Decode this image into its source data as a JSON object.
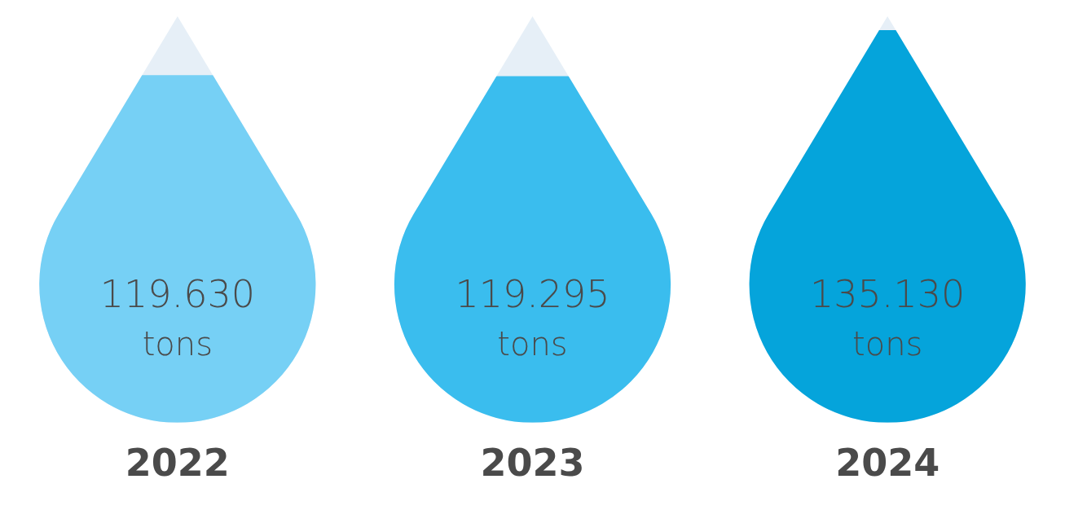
{
  "chart_data": {
    "type": "bar",
    "categories": [
      "2022",
      "2023",
      "2024"
    ],
    "values": [
      119630,
      119295,
      135130
    ],
    "value_labels": [
      "119.630 tons",
      "119.295 tons",
      "135.130 tons"
    ],
    "colors": [
      "#76d0f5",
      "#3abdee",
      "#05a4db"
    ],
    "tick_labels": "x",
    "grid": false,
    "legend": false
  }
}
